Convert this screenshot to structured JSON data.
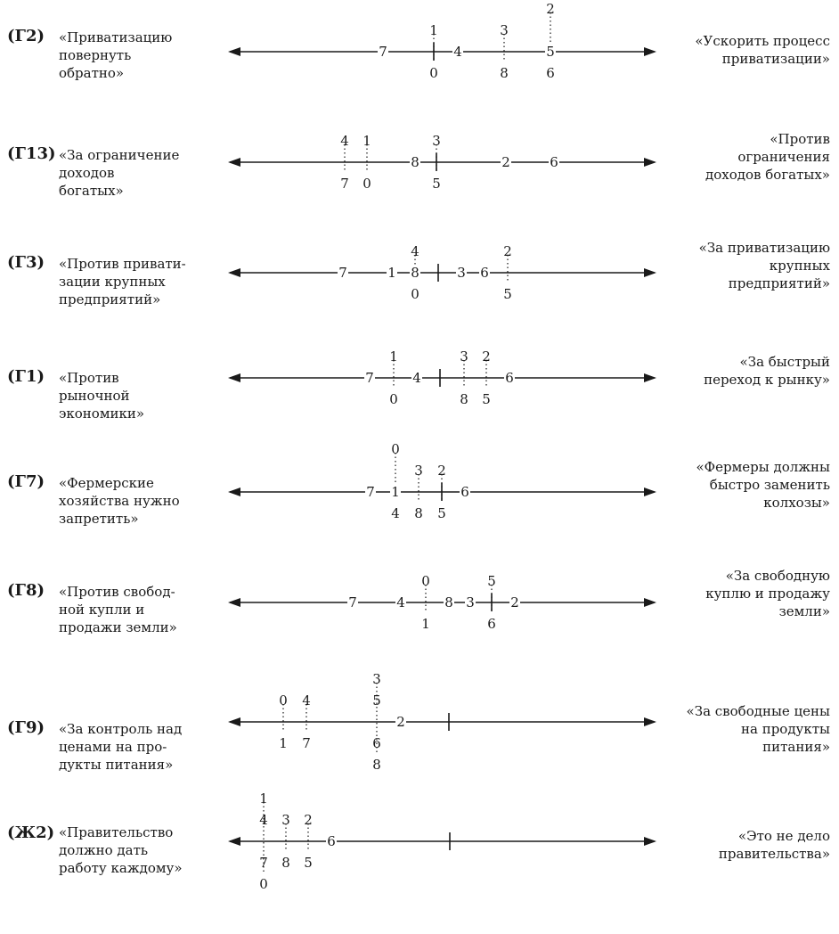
{
  "scales": [
    {
      "code": "(Г2)",
      "left": "«Приватизацию\nповернуть\nобратно»",
      "right": "«Ускорить процесс\nприватизации»",
      "axis": [
        {
          "label": "7",
          "pos": 430,
          "lane": 0
        },
        {
          "label": "4",
          "pos": 514,
          "lane": 0
        },
        {
          "label": "1",
          "pos": 487,
          "lane": -1
        },
        {
          "label": "0",
          "pos": 487,
          "lane": 1
        },
        {
          "label": "3",
          "pos": 566,
          "lane": -1
        },
        {
          "label": "8",
          "pos": 566,
          "lane": 1
        },
        {
          "label": "5",
          "pos": 618,
          "lane": 0
        },
        {
          "label": "2",
          "pos": 618,
          "lane": -2
        },
        {
          "label": "6",
          "pos": 618,
          "lane": 1
        }
      ]
    },
    {
      "code": "(Г13)",
      "left": "«За ограничение\nдоходов\nбогатых»",
      "right": "«Против\nограничения\nдоходов богатых»",
      "axis": [
        {
          "label": "4",
          "pos": 387,
          "lane": -1
        },
        {
          "label": "7",
          "pos": 387,
          "lane": 1
        },
        {
          "label": "1",
          "pos": 412,
          "lane": -1
        },
        {
          "label": "0",
          "pos": 412,
          "lane": 1
        },
        {
          "label": "8",
          "pos": 466,
          "lane": 0
        },
        {
          "label": "3",
          "pos": 490,
          "lane": -1
        },
        {
          "label": "5",
          "pos": 490,
          "lane": 1
        },
        {
          "label": "2",
          "pos": 568,
          "lane": 0
        },
        {
          "label": "6",
          "pos": 622,
          "lane": 0
        }
      ]
    },
    {
      "code": "(Г3)",
      "left": "«Против привати-\nзации крупных\nпредприятий»",
      "right": "«За приватизацию\nкрупных\nпредприятий»",
      "axis": [
        {
          "label": "7",
          "pos": 385,
          "lane": 0
        },
        {
          "label": "1",
          "pos": 440,
          "lane": 0
        },
        {
          "label": "8",
          "pos": 466,
          "lane": 0
        },
        {
          "label": "4",
          "pos": 466,
          "lane": -1
        },
        {
          "label": "0",
          "pos": 466,
          "lane": 1
        },
        {
          "label": "3",
          "pos": 518,
          "lane": 0
        },
        {
          "label": "6",
          "pos": 544,
          "lane": 0
        },
        {
          "label": "2",
          "pos": 570,
          "lane": -1
        },
        {
          "label": "5",
          "pos": 570,
          "lane": 1
        }
      ]
    },
    {
      "code": "(Г1)",
      "left": "«Против\nрыночной\nэкономики»",
      "right": "«За быстрый\nпереход к рынку»",
      "axis": [
        {
          "label": "7",
          "pos": 415,
          "lane": 0
        },
        {
          "label": "1",
          "pos": 442,
          "lane": -1
        },
        {
          "label": "0",
          "pos": 442,
          "lane": 1
        },
        {
          "label": "4",
          "pos": 468,
          "lane": 0
        },
        {
          "label": "3",
          "pos": 521,
          "lane": -1
        },
        {
          "label": "8",
          "pos": 521,
          "lane": 1
        },
        {
          "label": "2",
          "pos": 546,
          "lane": -1
        },
        {
          "label": "5",
          "pos": 546,
          "lane": 1
        },
        {
          "label": "6",
          "pos": 572,
          "lane": 0
        }
      ]
    },
    {
      "code": "(Г7)",
      "left": "«Фермерские\nхозяйства нужно\nзапретить»",
      "right": "«Фермеры должны\nбыстро заменить\nколхозы»",
      "axis": [
        {
          "label": "7",
          "pos": 416,
          "lane": 0
        },
        {
          "label": "1",
          "pos": 444,
          "lane": 0
        },
        {
          "label": "0",
          "pos": 444,
          "lane": -2
        },
        {
          "label": "4",
          "pos": 444,
          "lane": 1
        },
        {
          "label": "3",
          "pos": 470,
          "lane": -1
        },
        {
          "label": "8",
          "pos": 470,
          "lane": 1
        },
        {
          "label": "2",
          "pos": 496,
          "lane": -1
        },
        {
          "label": "5",
          "pos": 496,
          "lane": 1
        },
        {
          "label": "6",
          "pos": 522,
          "lane": 0
        }
      ]
    },
    {
      "code": "(Г8)",
      "left": "«Против свобод-\nной купли и\nпродажи земли»",
      "right": "«За свободную\nкуплю и продажу\nземли»",
      "axis": [
        {
          "label": "7",
          "pos": 396,
          "lane": 0
        },
        {
          "label": "4",
          "pos": 450,
          "lane": 0
        },
        {
          "label": "0",
          "pos": 478,
          "lane": -1
        },
        {
          "label": "1",
          "pos": 478,
          "lane": 1
        },
        {
          "label": "8",
          "pos": 504,
          "lane": 0
        },
        {
          "label": "3",
          "pos": 528,
          "lane": 0
        },
        {
          "label": "5",
          "pos": 552,
          "lane": -1
        },
        {
          "label": "6",
          "pos": 552,
          "lane": 1
        },
        {
          "label": "2",
          "pos": 578,
          "lane": 0
        }
      ]
    },
    {
      "code": "(Г9)",
      "left": "«За контроль над\nценами на про-\nдукты питания»",
      "right": "«За свободные цены\nна продукты\nпитания»",
      "axis": [
        {
          "label": "0",
          "pos": 318,
          "lane": -1
        },
        {
          "label": "1",
          "pos": 318,
          "lane": 1
        },
        {
          "label": "4",
          "pos": 344,
          "lane": -1
        },
        {
          "label": "7",
          "pos": 344,
          "lane": 1
        },
        {
          "label": "3",
          "pos": 423,
          "lane": -2
        },
        {
          "label": "5",
          "pos": 423,
          "lane": -1
        },
        {
          "label": "6",
          "pos": 423,
          "lane": 1
        },
        {
          "label": "8",
          "pos": 423,
          "lane": 2
        },
        {
          "label": "2",
          "pos": 450,
          "lane": 0
        }
      ]
    },
    {
      "code": "(Ж2)",
      "left": "«Правительство\nдолжно дать\nработу каждому»",
      "right": "«Это не дело\nправительства»",
      "axis": [
        {
          "label": "1",
          "pos": 296,
          "lane": -2
        },
        {
          "label": "4",
          "pos": 296,
          "lane": -1
        },
        {
          "label": "7",
          "pos": 296,
          "lane": 1
        },
        {
          "label": "0",
          "pos": 296,
          "lane": 2
        },
        {
          "label": "3",
          "pos": 321,
          "lane": -1
        },
        {
          "label": "8",
          "pos": 321,
          "lane": 1
        },
        {
          "label": "2",
          "pos": 346,
          "lane": -1
        },
        {
          "label": "5",
          "pos": 346,
          "lane": 1
        },
        {
          "label": "6",
          "pos": 372,
          "lane": 0
        }
      ]
    }
  ]
}
